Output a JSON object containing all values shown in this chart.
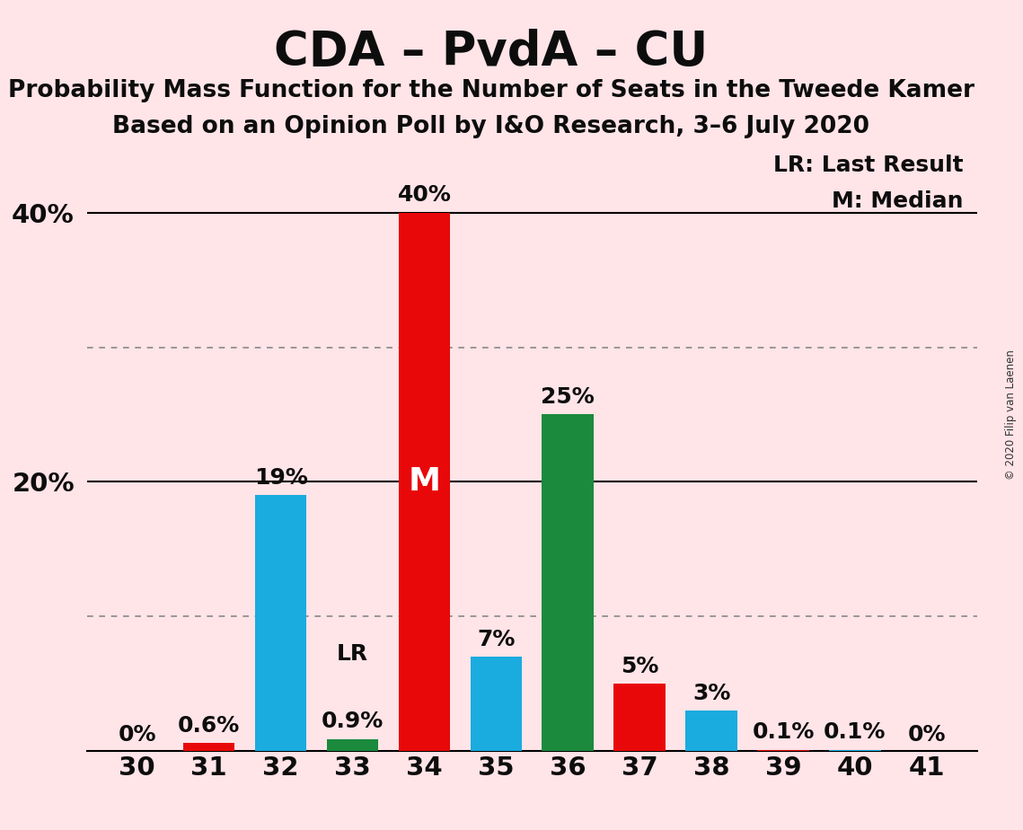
{
  "title": "CDA – PvdA – CU",
  "subtitle1": "Probability Mass Function for the Number of Seats in the Tweede Kamer",
  "subtitle2": "Based on an Opinion Poll by I&O Research, 3–6 July 2020",
  "copyright": "© 2020 Filip van Laenen",
  "legend_lr": "LR: Last Result",
  "legend_m": "M: Median",
  "seats": [
    30,
    31,
    32,
    33,
    34,
    35,
    36,
    37,
    38,
    39,
    40,
    41
  ],
  "values": [
    0.0,
    0.6,
    19.0,
    0.9,
    40.0,
    7.0,
    25.0,
    5.0,
    3.0,
    0.1,
    0.1,
    0.0
  ],
  "labels": [
    "0%",
    "0.6%",
    "19%",
    "0.9%",
    "40%",
    "7%",
    "25%",
    "5%",
    "3%",
    "0.1%",
    "0.1%",
    "0%"
  ],
  "colors": [
    "#E8080A",
    "#E8080A",
    "#1AABDF",
    "#1B8A3D",
    "#E8080A",
    "#1AABDF",
    "#1B8A3D",
    "#E8080A",
    "#1AABDF",
    "#E8080A",
    "#1AABDF",
    "#E8080A"
  ],
  "median_seat": 34,
  "last_result_seat": 33,
  "background_color": "#FFE4E8",
  "bar_width": 0.72,
  "ylim": [
    0,
    45
  ],
  "yticks": [
    20,
    40
  ],
  "ytick_labels": [
    "20%",
    "40%"
  ],
  "dotted_grid_values": [
    10,
    30
  ],
  "solid_grid_values": [
    20,
    40
  ],
  "title_fontsize": 38,
  "subtitle_fontsize": 19,
  "label_fontsize": 18,
  "tick_fontsize": 21,
  "median_label_color": "#FFFFFF",
  "median_label_fontsize": 26
}
